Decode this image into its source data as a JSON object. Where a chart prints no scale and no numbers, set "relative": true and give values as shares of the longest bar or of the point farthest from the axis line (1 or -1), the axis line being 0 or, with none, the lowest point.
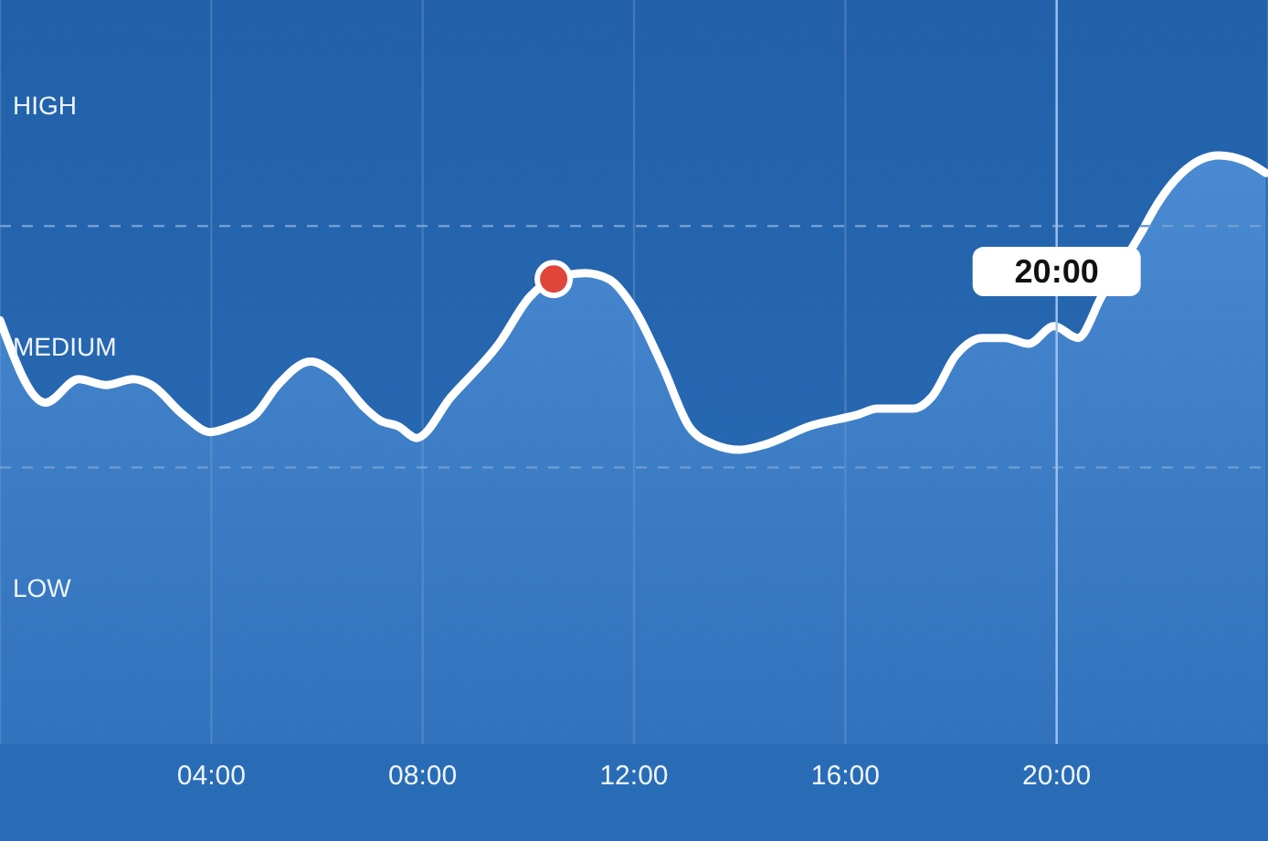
{
  "chart_data": {
    "type": "area",
    "relative": true,
    "series": [
      {
        "color": "#ffffff",
        "x": [
          0,
          0.86,
          1.49,
          2.01,
          2.52,
          2.87,
          3.46,
          3.98,
          4.39,
          4.84,
          5.26,
          5.88,
          6.33,
          6.92,
          7.19,
          7.54,
          7.88,
          8.54,
          9.44,
          10.03,
          10.48,
          11.07,
          11.52,
          12.0,
          12.55,
          13.04,
          13.49,
          14.0,
          14.52,
          15.32,
          16.25,
          16.6,
          17.29,
          17.64,
          18.09,
          18.6,
          19.02,
          19.47,
          19.95,
          20.4,
          20.85,
          21.67,
          21.79,
          22.37,
          23.07,
          23.58,
          23.96
        ],
        "values": [
          0.72,
          0.58,
          0.62,
          0.61,
          0.62,
          0.61,
          0.56,
          0.53,
          0.54,
          0.56,
          0.61,
          0.65,
          0.63,
          0.57,
          0.55,
          0.54,
          0.52,
          0.59,
          0.68,
          0.76,
          0.79,
          0.8,
          0.79,
          0.74,
          0.64,
          0.54,
          0.51,
          0.5,
          0.51,
          0.54,
          0.56,
          0.57,
          0.57,
          0.59,
          0.66,
          0.69,
          0.69,
          0.68,
          0.71,
          0.69,
          0.76,
          0.88,
          0.9,
          0.97,
          1,
          0.99,
          0.97
        ]
      },
      {
        "type": "scatter",
        "color": "#e0453a",
        "marker": "circle",
        "x": [
          10.48
        ],
        "values": [
          0.79
        ]
      }
    ],
    "xlim": [
      0,
      24
    ],
    "xticks": [
      {
        "value": 0,
        "label": null
      },
      {
        "value": 4,
        "label": "04:00"
      },
      {
        "value": 8,
        "label": "08:00"
      },
      {
        "value": 12,
        "label": "12:00"
      },
      {
        "value": 16,
        "label": "16:00"
      },
      {
        "value": 20,
        "label": "20:00"
      }
    ],
    "grid": "x",
    "annotations": [
      "HIGH",
      "MEDIUM",
      "LOW"
    ],
    "ref_lines": [
      {
        "axis": "y",
        "value": 0.47,
        "color": "#6f9dd4",
        "line_style": "dashed"
      },
      {
        "axis": "y",
        "value": 0.88,
        "color": "#6f9dd4",
        "line_style": "dashed"
      },
      {
        "axis": "x",
        "value": 20,
        "label": "20:00",
        "color": "#9cc2ec"
      }
    ]
  }
}
